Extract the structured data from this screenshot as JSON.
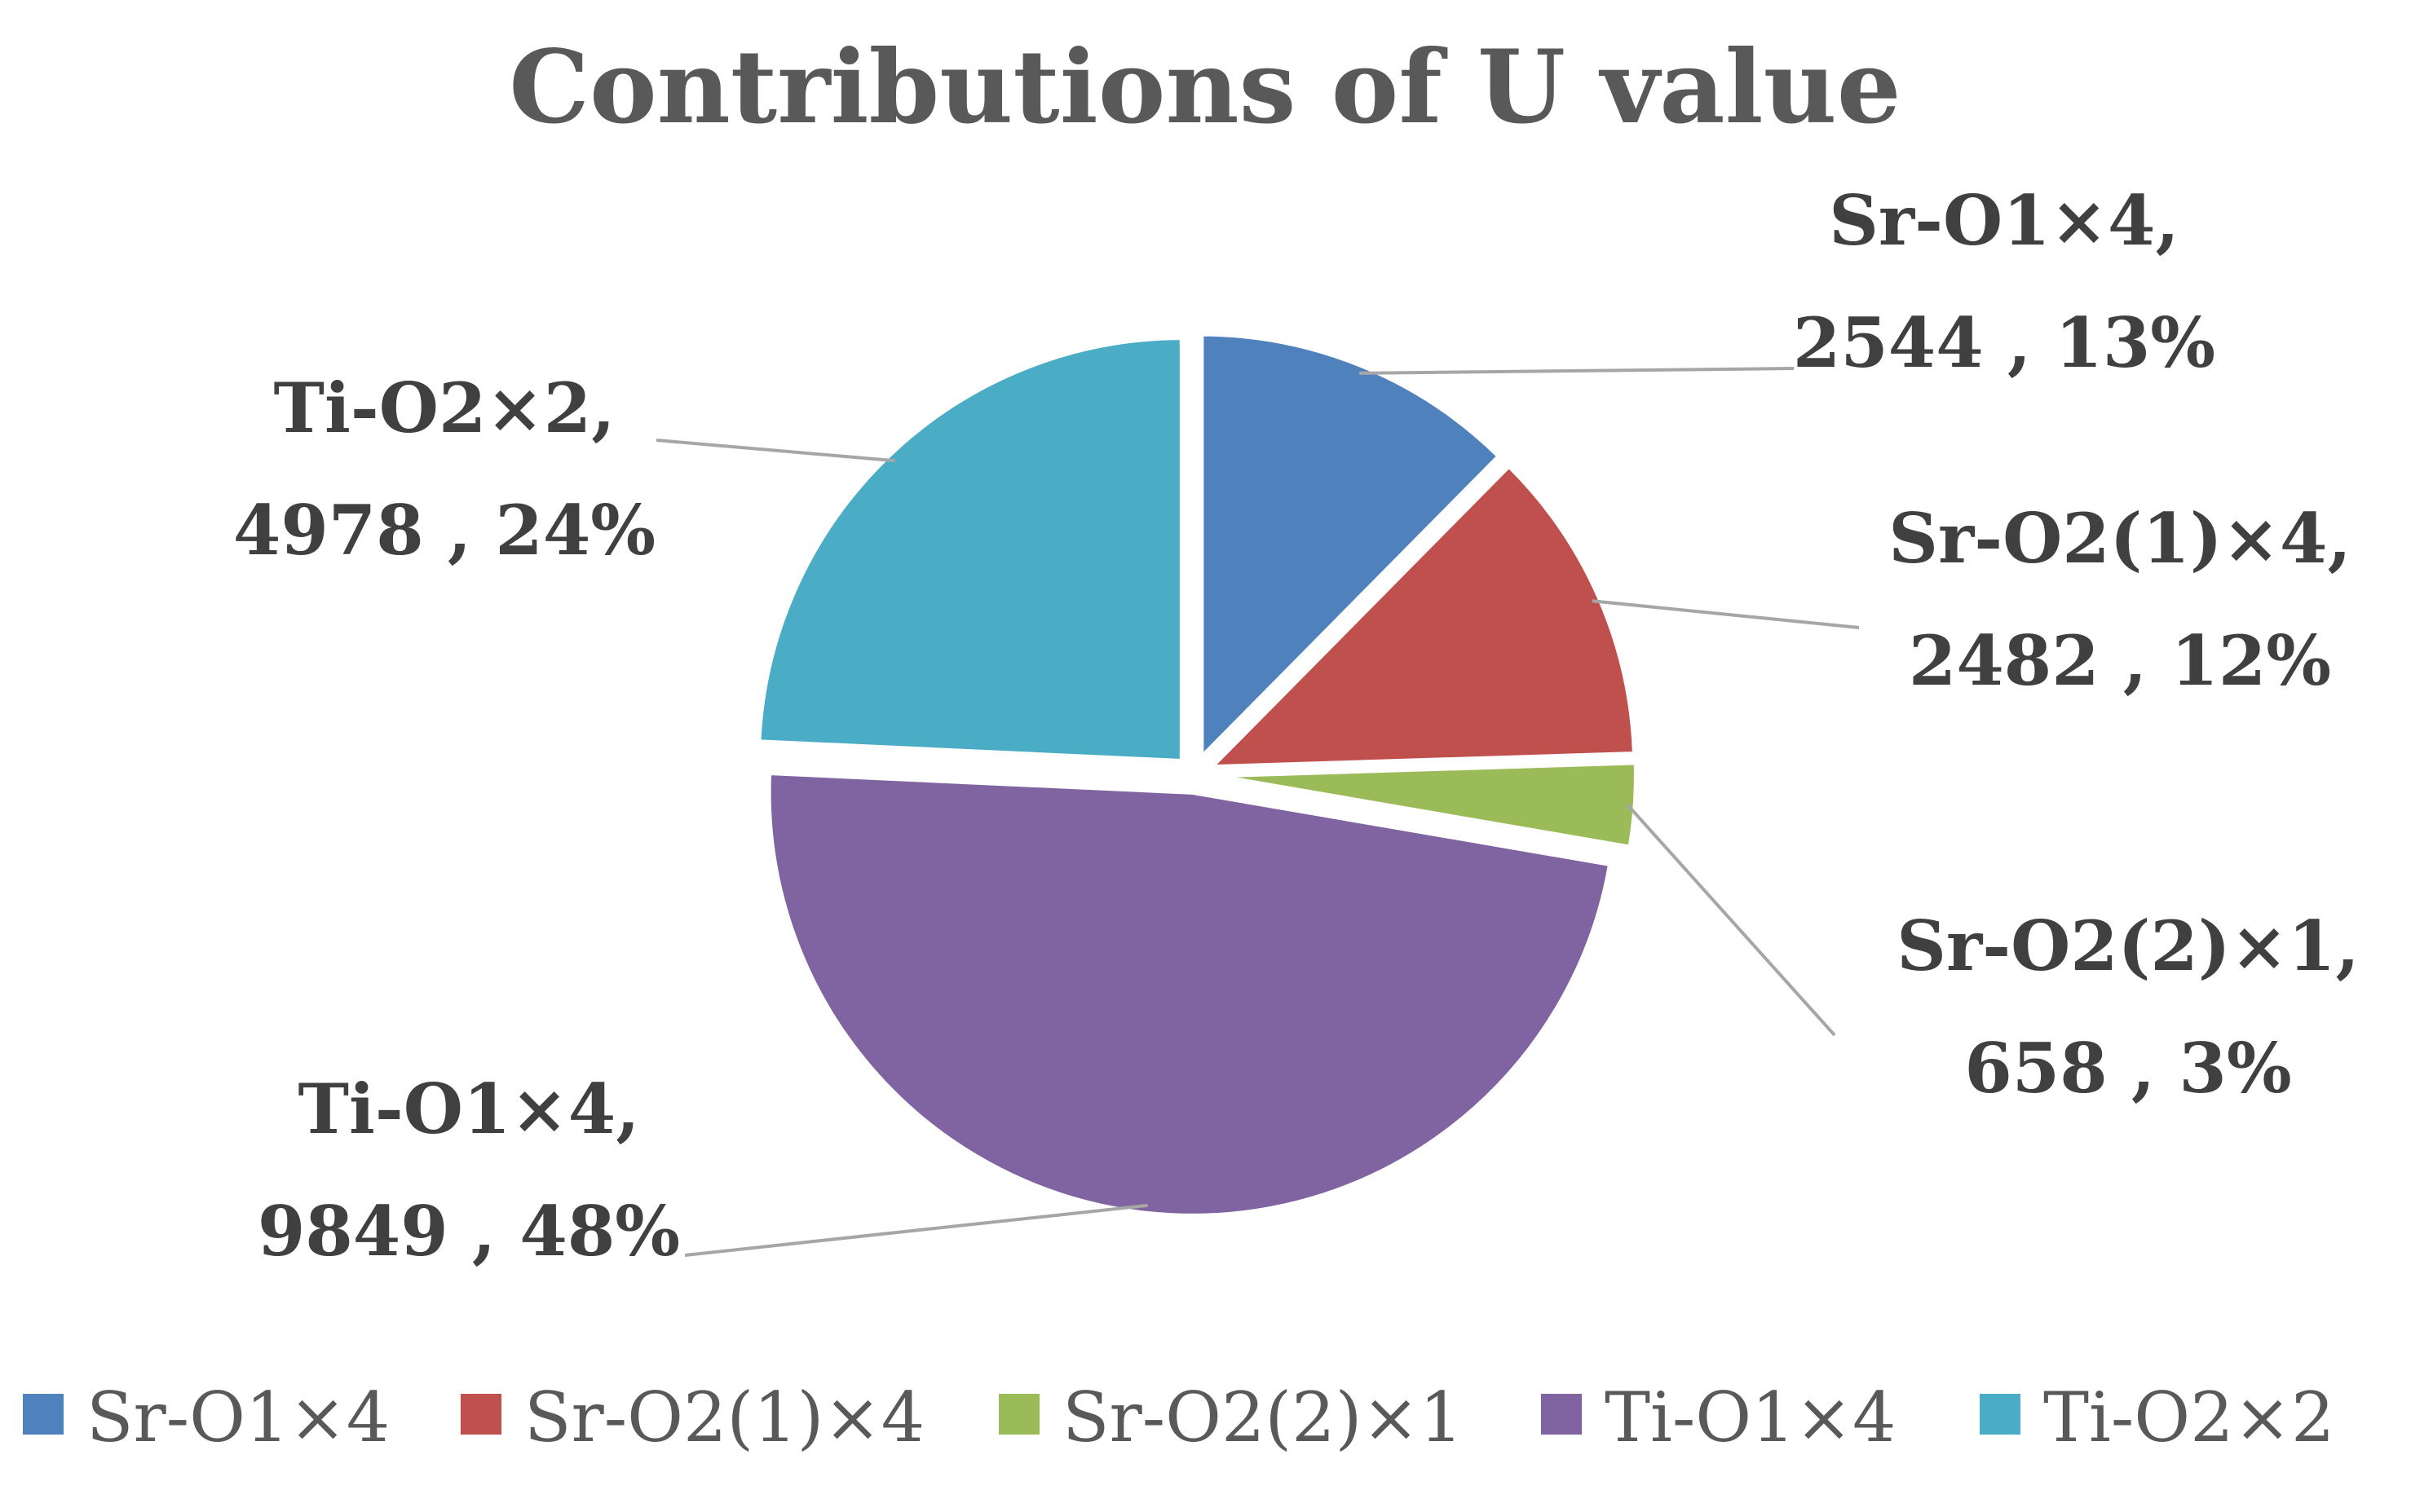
{
  "chart_data": {
    "type": "pie",
    "title": "Contributions of U value",
    "categories": [
      "Sr-O1×4",
      "Sr-O2(1)×4",
      "Sr-O2(2)×1",
      "Ti-O1×4",
      "Ti-O2×2"
    ],
    "values": [
      2544,
      2482,
      658,
      9849,
      4978
    ],
    "percentages": [
      "13%",
      "12%",
      "3%",
      "48%",
      "24%"
    ],
    "colors": [
      "#4f81bd",
      "#c0504d",
      "#9bbb59",
      "#8064a2",
      "#4bacc6"
    ],
    "data_labels": [
      {
        "line1": "Sr-O1×4,",
        "line2": "2544 , 13%"
      },
      {
        "line1": "Sr-O2(1)×4,",
        "line2": "2482 , 12%"
      },
      {
        "line1": "Sr-O2(2)×1,",
        "line2": "658 , 3%"
      },
      {
        "line1": "Ti-O1×4,",
        "line2": "9849 , 48%"
      },
      {
        "line1": "Ti-O2×2,",
        "line2": "4978 , 24%"
      }
    ],
    "legend": [
      "Sr-O1×4",
      "Sr-O2(1)×4",
      "Sr-O2(2)×1",
      "Ti-O1×4",
      "Ti-O2×2"
    ],
    "legend_position": "bottom",
    "exploded": true
  }
}
